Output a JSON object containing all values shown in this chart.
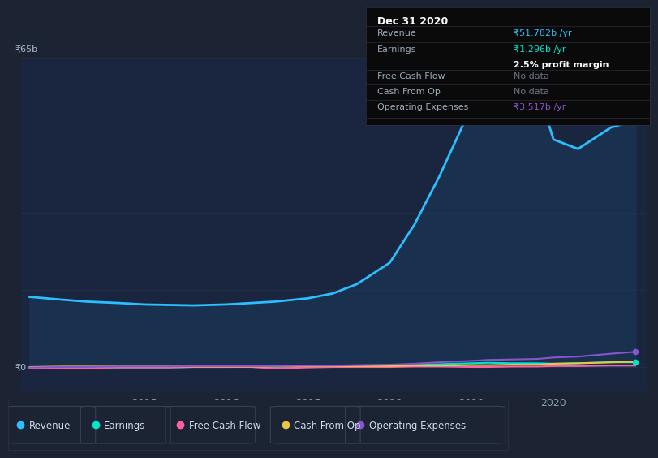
{
  "bg_color": "#1c2333",
  "plot_bg_color": "#162030",
  "chart_bg_color": "#1a2640",
  "grid_color": "#253040",
  "ylabel_text": "₹65b",
  "y0_text": "₹0",
  "years": [
    2013.6,
    2014.0,
    2014.3,
    2014.7,
    2015.0,
    2015.3,
    2015.6,
    2016.0,
    2016.3,
    2016.6,
    2017.0,
    2017.3,
    2017.6,
    2018.0,
    2018.3,
    2018.6,
    2019.0,
    2019.2,
    2019.5,
    2019.8,
    2020.0,
    2020.3,
    2020.7,
    2021.0
  ],
  "revenue": [
    14.8,
    14.2,
    13.8,
    13.5,
    13.2,
    13.1,
    13.0,
    13.2,
    13.5,
    13.8,
    14.5,
    15.5,
    17.5,
    22.0,
    30.0,
    40.0,
    55.0,
    60.0,
    61.5,
    59.0,
    48.0,
    46.0,
    50.5,
    52.0
  ],
  "earnings": [
    -0.2,
    -0.1,
    -0.1,
    -0.1,
    -0.1,
    -0.1,
    -0.0,
    0.0,
    0.1,
    0.1,
    0.2,
    0.2,
    0.3,
    0.4,
    0.5,
    0.6,
    0.8,
    0.9,
    0.8,
    0.8,
    0.7,
    0.8,
    1.0,
    1.0
  ],
  "free_cash_flow": [
    -0.3,
    -0.2,
    -0.2,
    -0.1,
    -0.1,
    -0.1,
    -0.0,
    -0.0,
    0.0,
    -0.3,
    -0.1,
    -0.0,
    0.0,
    0.0,
    0.1,
    0.1,
    0.0,
    0.0,
    0.1,
    0.1,
    0.2,
    0.2,
    0.3,
    0.3
  ],
  "cash_from_op": [
    0.0,
    0.1,
    0.1,
    0.1,
    0.1,
    0.1,
    0.1,
    0.1,
    0.1,
    0.1,
    0.2,
    0.2,
    0.2,
    0.2,
    0.3,
    0.3,
    0.4,
    0.4,
    0.5,
    0.5,
    0.7,
    0.8,
    1.0,
    1.1
  ],
  "op_expenses": [
    -0.1,
    -0.0,
    0.0,
    0.1,
    0.1,
    0.1,
    0.2,
    0.2,
    0.2,
    0.2,
    0.3,
    0.3,
    0.4,
    0.5,
    0.7,
    1.0,
    1.3,
    1.5,
    1.6,
    1.7,
    2.0,
    2.2,
    2.8,
    3.2
  ],
  "revenue_color": "#2bbfff",
  "earnings_color": "#00e5cc",
  "fcf_color": "#ff5fa0",
  "cashop_color": "#e8c840",
  "opex_color": "#8855cc",
  "revenue_fill": "#1a3a5c",
  "xlim_left": 2013.5,
  "xlim_right": 2021.15,
  "ylim_top": 65,
  "ylim_bottom": -5,
  "xticks": [
    2015,
    2016,
    2017,
    2018,
    2019,
    2020
  ],
  "legend_labels": [
    "Revenue",
    "Earnings",
    "Free Cash Flow",
    "Cash From Op",
    "Operating Expenses"
  ],
  "info_box": {
    "date": "Dec 31 2020",
    "revenue_label": "Revenue",
    "revenue_val": "₹51.782b /yr",
    "earnings_label": "Earnings",
    "earnings_val": "₹1.296b /yr",
    "profit_margin": "2.5% profit margin",
    "fcf_label": "Free Cash Flow",
    "fcf_val": "No data",
    "cashop_label": "Cash From Op",
    "cashop_val": "No data",
    "opex_label": "Operating Expenses",
    "opex_val": "₹3.517b /yr"
  }
}
